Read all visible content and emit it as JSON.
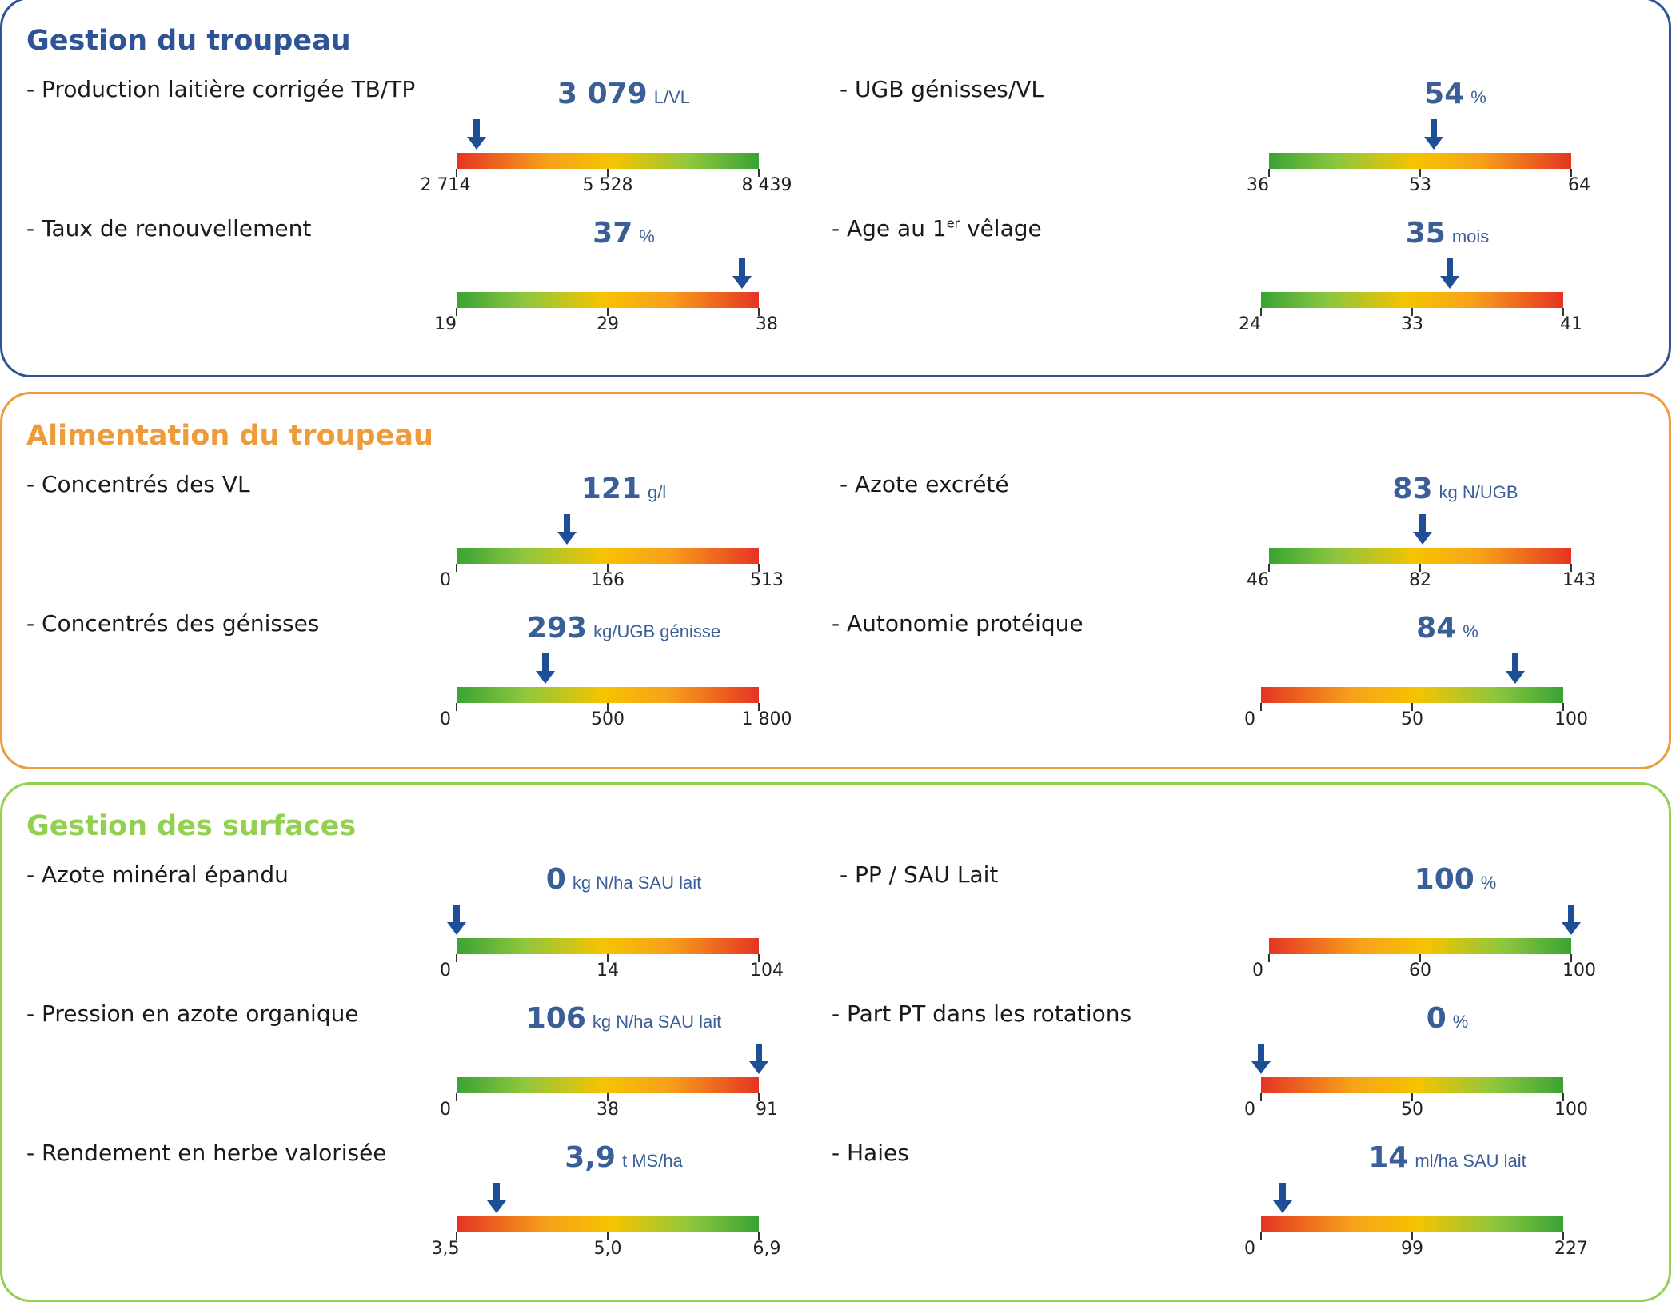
{
  "colors": {
    "section1": "#2f5496",
    "section2": "#ee9b3b",
    "section3": "#92d050",
    "pointer": "#1e4e96",
    "value_text": "#3a5f96"
  },
  "sections": [
    {
      "title": "Gestion du troupeau",
      "color": "#2f5496",
      "indicators": [
        {
          "label": "- Production laitière corrigée TB/TP",
          "value": "3 079",
          "unit": "L/VL",
          "ticks": [
            "2 714",
            "5 528",
            "8 439"
          ],
          "min": 2714,
          "mid": 5528,
          "max": 8439,
          "current": 3079,
          "scale": "red-green"
        },
        {
          "label": "- UGB génisses/VL",
          "value": "54",
          "unit": "%",
          "ticks": [
            "36",
            "53",
            "64"
          ],
          "min": 36,
          "mid": 53,
          "max": 64,
          "current": 54,
          "scale": "green-red"
        },
        {
          "label": "- Taux de renouvellement",
          "value": "37",
          "unit": "%",
          "ticks": [
            "19",
            "29",
            "38"
          ],
          "min": 19,
          "mid": 29,
          "max": 38,
          "current": 37,
          "scale": "green-red"
        },
        {
          "label_pre": "- Age au 1",
          "label_sup": "er",
          "label_post": " vêlage",
          "value": "35",
          "unit": "mois",
          "ticks": [
            "24",
            "33",
            "41"
          ],
          "min": 24,
          "mid": 33,
          "max": 41,
          "current": 35,
          "scale": "green-red"
        }
      ]
    },
    {
      "title": "Alimentation du troupeau",
      "color": "#ee9b3b",
      "indicators": [
        {
          "label": "- Concentrés des VL",
          "value": "121",
          "unit": "g/l",
          "ticks": [
            "0",
            "166",
            "513"
          ],
          "min": 0,
          "mid": 166,
          "max": 513,
          "current": 121,
          "scale": "green-red"
        },
        {
          "label": "- Azote excrété",
          "value": "83",
          "unit": "kg N/UGB",
          "ticks": [
            "46",
            "82",
            "143"
          ],
          "min": 46,
          "mid": 82,
          "max": 143,
          "current": 83,
          "scale": "green-red"
        },
        {
          "label": "- Concentrés des génisses",
          "value": "293",
          "unit": "kg/UGB génisse",
          "ticks": [
            "0",
            "500",
            "1 800"
          ],
          "min": 0,
          "mid": 500,
          "max": 1800,
          "current": 293,
          "scale": "green-red"
        },
        {
          "label": "- Autonomie protéique",
          "value": "84",
          "unit": "%",
          "ticks": [
            "0",
            "50",
            "100"
          ],
          "min": 0,
          "mid": 50,
          "max": 100,
          "current": 84,
          "scale": "red-green"
        }
      ]
    },
    {
      "title": "Gestion des surfaces",
      "color": "#92d050",
      "indicators": [
        {
          "label": "- Azote minéral épandu",
          "value": "0",
          "unit": "kg N/ha SAU lait",
          "ticks": [
            "0",
            "14",
            "104"
          ],
          "min": 0,
          "mid": 14,
          "max": 104,
          "current": 0,
          "scale": "green-red"
        },
        {
          "label": "- PP / SAU Lait",
          "value": "100",
          "unit": "%",
          "ticks": [
            "0",
            "60",
            "100"
          ],
          "min": 0,
          "mid": 60,
          "max": 100,
          "current": 100,
          "scale": "red-green"
        },
        {
          "label": "- Pression en azote organique",
          "value": "106",
          "unit": "kg N/ha SAU lait",
          "ticks": [
            "0",
            "38",
            "91"
          ],
          "min": 0,
          "mid": 38,
          "max": 91,
          "current": 106,
          "scale": "green-red"
        },
        {
          "label": "- Part PT dans les rotations",
          "value": "0",
          "unit": "%",
          "ticks": [
            "0",
            "50",
            "100"
          ],
          "min": 0,
          "mid": 50,
          "max": 100,
          "current": 0,
          "scale": "red-green"
        },
        {
          "label": "- Rendement en herbe valorisée",
          "value": "3,9",
          "unit": "t MS/ha",
          "ticks": [
            "3,5",
            "5,0",
            "6,9"
          ],
          "min": 3.5,
          "mid": 5.0,
          "max": 6.9,
          "current": 3.9,
          "scale": "red-green"
        },
        {
          "label": "- Haies",
          "value": "14",
          "unit": "ml/ha SAU lait",
          "ticks": [
            "0",
            "99",
            "227"
          ],
          "min": 0,
          "mid": 99,
          "max": 227,
          "current": 14,
          "scale": "red-green"
        }
      ]
    }
  ]
}
